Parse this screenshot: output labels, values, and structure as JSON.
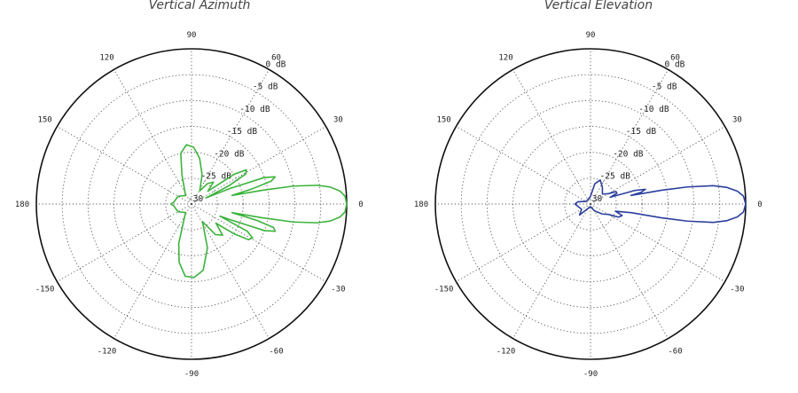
{
  "chart_data": [
    {
      "type": "polar",
      "title": "Vertical Azimuth",
      "color": "#3cb33c",
      "r_min_db": -30,
      "r_max_db": 0,
      "ring_labels": [
        "0 dB",
        "-5 dB",
        "-10 dB",
        "-15 dB",
        "-20 dB",
        "-25 dB",
        "-30"
      ],
      "angle_labels": [
        "0",
        "30",
        "60",
        "90",
        "120",
        "150",
        "180",
        "-150",
        "-120",
        "-90",
        "-60",
        "-30"
      ],
      "grid": true,
      "points": [
        [
          0,
          0
        ],
        [
          3,
          -0.3
        ],
        [
          5,
          -1.2
        ],
        [
          7,
          -3
        ],
        [
          8.5,
          -5.5
        ],
        [
          10,
          -10
        ],
        [
          11,
          -16
        ],
        [
          12,
          -22
        ],
        [
          14,
          -18
        ],
        [
          16,
          -14
        ],
        [
          18,
          -13
        ],
        [
          20,
          -15
        ],
        [
          22,
          -22
        ],
        [
          23,
          -27
        ],
        [
          26,
          -22
        ],
        [
          29,
          -18
        ],
        [
          32,
          -17.5
        ],
        [
          35,
          -20
        ],
        [
          38,
          -26
        ],
        [
          45,
          -24
        ],
        [
          52,
          -25
        ],
        [
          58,
          -27
        ],
        [
          70,
          -24
        ],
        [
          80,
          -21
        ],
        [
          88,
          -19
        ],
        [
          95,
          -18.5
        ],
        [
          102,
          -20
        ],
        [
          108,
          -24
        ],
        [
          125,
          -28
        ],
        [
          150,
          -27
        ],
        [
          175,
          -26.5
        ],
        [
          180,
          -26
        ],
        [
          -175,
          -26.5
        ],
        [
          -150,
          -27
        ],
        [
          -125,
          -28
        ],
        [
          -108,
          -22
        ],
        [
          -102,
          -18.5
        ],
        [
          -95,
          -16
        ],
        [
          -88,
          -15.8
        ],
        [
          -80,
          -17
        ],
        [
          -70,
          -21
        ],
        [
          -58,
          -26
        ],
        [
          -52,
          -22.5
        ],
        [
          -45,
          -21.5
        ],
        [
          -38,
          -24
        ],
        [
          -35,
          -20
        ],
        [
          -32,
          -17
        ],
        [
          -29,
          -16.5
        ],
        [
          -26,
          -18
        ],
        [
          -23,
          -24
        ],
        [
          -22,
          -22
        ],
        [
          -20,
          -15
        ],
        [
          -18,
          -13
        ],
        [
          -16,
          -13.5
        ],
        [
          -14,
          -17
        ],
        [
          -12,
          -22
        ],
        [
          -11,
          -16
        ],
        [
          -10,
          -10
        ],
        [
          -8.5,
          -5.5
        ],
        [
          -7,
          -3
        ],
        [
          -5,
          -1.2
        ],
        [
          -3,
          -0.3
        ],
        [
          0,
          0
        ]
      ]
    },
    {
      "type": "polar",
      "title": "Vertical Elevation",
      "color": "#2b3f9e",
      "r_min_db": -30,
      "r_max_db": 0,
      "ring_labels": [
        "0 dB",
        "-5 dB",
        "-10 dB",
        "-15 dB",
        "-20 dB",
        "-25 dB",
        "-30"
      ],
      "angle_labels": [
        "0",
        "30",
        "60",
        "90",
        "120",
        "150",
        "180",
        "-150",
        "-120",
        "-90",
        "-60",
        "-30"
      ],
      "grid": true,
      "points": [
        [
          0,
          0
        ],
        [
          3,
          -0.4
        ],
        [
          5,
          -1.5
        ],
        [
          7,
          -3.5
        ],
        [
          8.5,
          -6
        ],
        [
          10,
          -11
        ],
        [
          11,
          -16
        ],
        [
          12,
          -22
        ],
        [
          13,
          -20
        ],
        [
          15,
          -19
        ],
        [
          17,
          -21
        ],
        [
          19,
          -26
        ],
        [
          22,
          -24.5
        ],
        [
          26,
          -24.5
        ],
        [
          30,
          -26
        ],
        [
          40,
          -27
        ],
        [
          55,
          -26
        ],
        [
          68,
          -25
        ],
        [
          78,
          -26
        ],
        [
          90,
          -28.5
        ],
        [
          120,
          -29
        ],
        [
          150,
          -29
        ],
        [
          170,
          -27.5
        ],
        [
          180,
          -27
        ],
        [
          -170,
          -27.5
        ],
        [
          -150,
          -28
        ],
        [
          -135,
          -27
        ],
        [
          -120,
          -29
        ],
        [
          -90,
          -29.5
        ],
        [
          -60,
          -28.5
        ],
        [
          -40,
          -27
        ],
        [
          -30,
          -26
        ],
        [
          -25,
          -24
        ],
        [
          -20,
          -23.5
        ],
        [
          -16,
          -25
        ],
        [
          -13,
          -23
        ],
        [
          -12,
          -22
        ],
        [
          -11,
          -16
        ],
        [
          -10,
          -11
        ],
        [
          -8.5,
          -6
        ],
        [
          -7,
          -3.5
        ],
        [
          -5,
          -1.5
        ],
        [
          -3,
          -0.4
        ],
        [
          0,
          0
        ]
      ]
    }
  ]
}
